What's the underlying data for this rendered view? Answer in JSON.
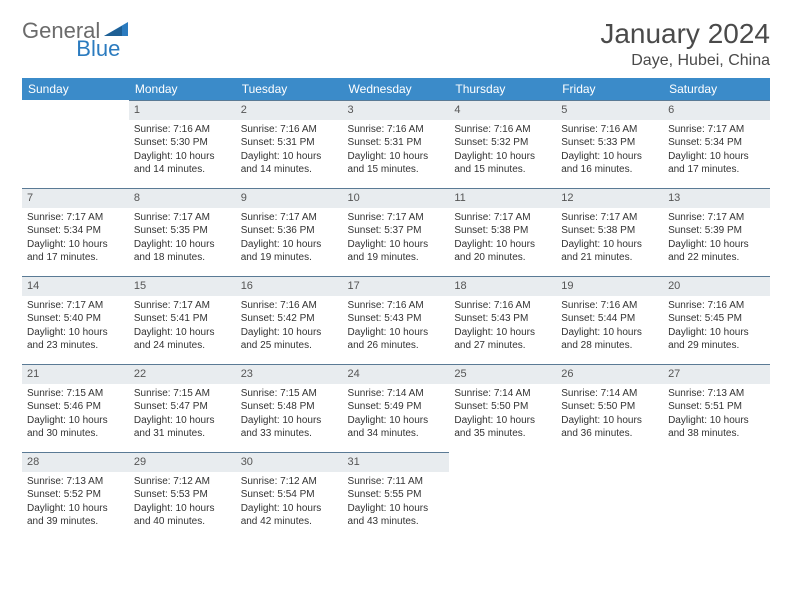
{
  "logo": {
    "part1": "General",
    "part2": "Blue"
  },
  "title": "January 2024",
  "location": "Daye, Hubei, China",
  "colors": {
    "header_bg": "#3b8bc9",
    "header_text": "#ffffff",
    "daynum_bg": "#e8ecef",
    "daynum_border": "#5a7a95",
    "text": "#333333",
    "logo_gray": "#6b6b6b",
    "logo_blue": "#2b7bbf"
  },
  "weekdays": [
    "Sunday",
    "Monday",
    "Tuesday",
    "Wednesday",
    "Thursday",
    "Friday",
    "Saturday"
  ],
  "weeks": [
    [
      null,
      {
        "n": "1",
        "sr": "7:16 AM",
        "ss": "5:30 PM",
        "dl": "10 hours and 14 minutes."
      },
      {
        "n": "2",
        "sr": "7:16 AM",
        "ss": "5:31 PM",
        "dl": "10 hours and 14 minutes."
      },
      {
        "n": "3",
        "sr": "7:16 AM",
        "ss": "5:31 PM",
        "dl": "10 hours and 15 minutes."
      },
      {
        "n": "4",
        "sr": "7:16 AM",
        "ss": "5:32 PM",
        "dl": "10 hours and 15 minutes."
      },
      {
        "n": "5",
        "sr": "7:16 AM",
        "ss": "5:33 PM",
        "dl": "10 hours and 16 minutes."
      },
      {
        "n": "6",
        "sr": "7:17 AM",
        "ss": "5:34 PM",
        "dl": "10 hours and 17 minutes."
      }
    ],
    [
      {
        "n": "7",
        "sr": "7:17 AM",
        "ss": "5:34 PM",
        "dl": "10 hours and 17 minutes."
      },
      {
        "n": "8",
        "sr": "7:17 AM",
        "ss": "5:35 PM",
        "dl": "10 hours and 18 minutes."
      },
      {
        "n": "9",
        "sr": "7:17 AM",
        "ss": "5:36 PM",
        "dl": "10 hours and 19 minutes."
      },
      {
        "n": "10",
        "sr": "7:17 AM",
        "ss": "5:37 PM",
        "dl": "10 hours and 19 minutes."
      },
      {
        "n": "11",
        "sr": "7:17 AM",
        "ss": "5:38 PM",
        "dl": "10 hours and 20 minutes."
      },
      {
        "n": "12",
        "sr": "7:17 AM",
        "ss": "5:38 PM",
        "dl": "10 hours and 21 minutes."
      },
      {
        "n": "13",
        "sr": "7:17 AM",
        "ss": "5:39 PM",
        "dl": "10 hours and 22 minutes."
      }
    ],
    [
      {
        "n": "14",
        "sr": "7:17 AM",
        "ss": "5:40 PM",
        "dl": "10 hours and 23 minutes."
      },
      {
        "n": "15",
        "sr": "7:17 AM",
        "ss": "5:41 PM",
        "dl": "10 hours and 24 minutes."
      },
      {
        "n": "16",
        "sr": "7:16 AM",
        "ss": "5:42 PM",
        "dl": "10 hours and 25 minutes."
      },
      {
        "n": "17",
        "sr": "7:16 AM",
        "ss": "5:43 PM",
        "dl": "10 hours and 26 minutes."
      },
      {
        "n": "18",
        "sr": "7:16 AM",
        "ss": "5:43 PM",
        "dl": "10 hours and 27 minutes."
      },
      {
        "n": "19",
        "sr": "7:16 AM",
        "ss": "5:44 PM",
        "dl": "10 hours and 28 minutes."
      },
      {
        "n": "20",
        "sr": "7:16 AM",
        "ss": "5:45 PM",
        "dl": "10 hours and 29 minutes."
      }
    ],
    [
      {
        "n": "21",
        "sr": "7:15 AM",
        "ss": "5:46 PM",
        "dl": "10 hours and 30 minutes."
      },
      {
        "n": "22",
        "sr": "7:15 AM",
        "ss": "5:47 PM",
        "dl": "10 hours and 31 minutes."
      },
      {
        "n": "23",
        "sr": "7:15 AM",
        "ss": "5:48 PM",
        "dl": "10 hours and 33 minutes."
      },
      {
        "n": "24",
        "sr": "7:14 AM",
        "ss": "5:49 PM",
        "dl": "10 hours and 34 minutes."
      },
      {
        "n": "25",
        "sr": "7:14 AM",
        "ss": "5:50 PM",
        "dl": "10 hours and 35 minutes."
      },
      {
        "n": "26",
        "sr": "7:14 AM",
        "ss": "5:50 PM",
        "dl": "10 hours and 36 minutes."
      },
      {
        "n": "27",
        "sr": "7:13 AM",
        "ss": "5:51 PM",
        "dl": "10 hours and 38 minutes."
      }
    ],
    [
      {
        "n": "28",
        "sr": "7:13 AM",
        "ss": "5:52 PM",
        "dl": "10 hours and 39 minutes."
      },
      {
        "n": "29",
        "sr": "7:12 AM",
        "ss": "5:53 PM",
        "dl": "10 hours and 40 minutes."
      },
      {
        "n": "30",
        "sr": "7:12 AM",
        "ss": "5:54 PM",
        "dl": "10 hours and 42 minutes."
      },
      {
        "n": "31",
        "sr": "7:11 AM",
        "ss": "5:55 PM",
        "dl": "10 hours and 43 minutes."
      },
      null,
      null,
      null
    ]
  ],
  "labels": {
    "sunrise": "Sunrise:",
    "sunset": "Sunset:",
    "daylight": "Daylight:"
  }
}
